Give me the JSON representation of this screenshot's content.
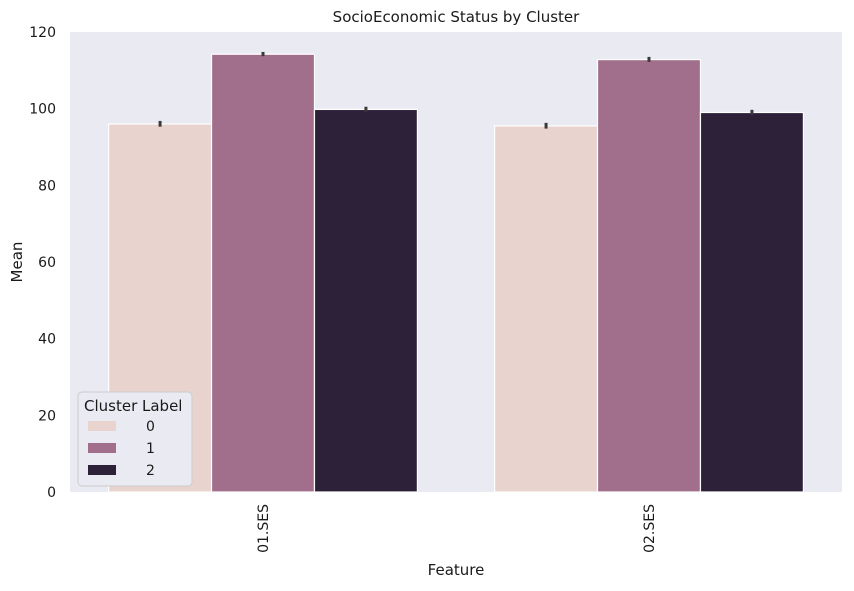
{
  "chart_data": {
    "type": "bar",
    "title": "SocioEconomic Status by Cluster",
    "xlabel": "Feature",
    "ylabel": "Mean",
    "categories": [
      "01.SES",
      "02.SES"
    ],
    "ylim": [
      0,
      120
    ],
    "yticks": [
      "0",
      "20",
      "40",
      "60",
      "80",
      "100",
      "120"
    ],
    "grid": false,
    "series": [
      {
        "name": "0",
        "values": [
          96.0,
          95.5
        ],
        "err": [
          [
            95.3,
            96.8
          ],
          [
            94.8,
            96.3
          ]
        ]
      },
      {
        "name": "1",
        "values": [
          114.2,
          112.8
        ],
        "err": [
          [
            113.7,
            114.8
          ],
          [
            112.2,
            113.5
          ]
        ]
      },
      {
        "name": "2",
        "values": [
          99.8,
          99.0
        ],
        "err": [
          [
            99.2,
            100.5
          ],
          [
            98.4,
            99.7
          ]
        ]
      }
    ],
    "colors": [
      "#e8d3ce",
      "#a16e8b",
      "#2d2139"
    ],
    "legend": {
      "title": "Cluster Label",
      "placement": "lower-left"
    },
    "background": "#eaeaf2"
  }
}
